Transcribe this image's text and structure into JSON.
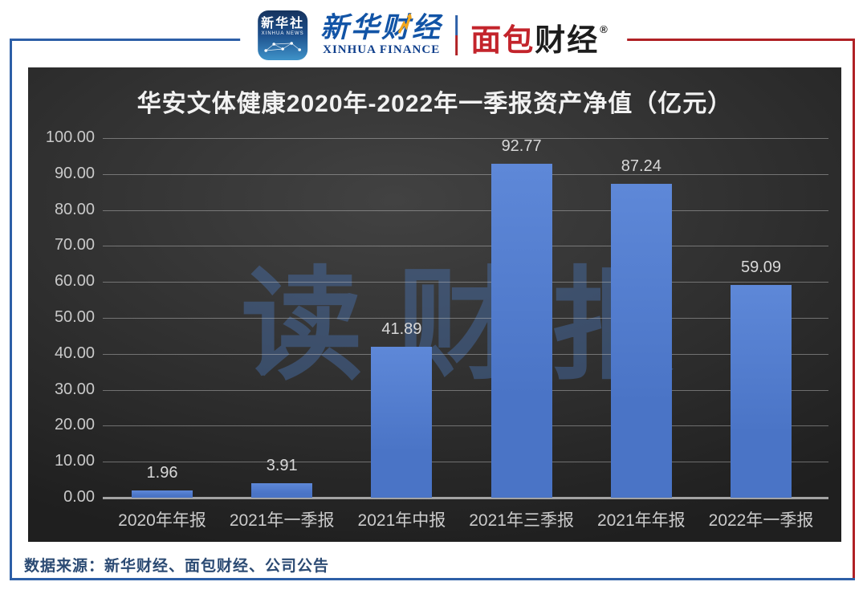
{
  "header": {
    "xinhua_news_icon": {
      "line1": "新华社",
      "line2": "XINHUA NEWS"
    },
    "xinhua_finance": {
      "cn": "新华财经",
      "en": "XINHUA FINANCE"
    },
    "mianbao": {
      "cn_red": "面包",
      "cn_black": "财经",
      "reg": "®"
    }
  },
  "chart_data": {
    "type": "bar",
    "title": "华安文体健康2020年-2022年一季报资产净值（亿元）",
    "categories": [
      "2020年年报",
      "2021年一季报",
      "2021年中报",
      "2021年三季报",
      "2021年年报",
      "2022年一季报"
    ],
    "values": [
      1.96,
      3.91,
      41.89,
      92.77,
      87.24,
      59.09
    ],
    "value_labels": [
      "1.96",
      "3.91",
      "41.89",
      "92.77",
      "87.24",
      "59.09"
    ],
    "ylim": [
      0,
      100
    ],
    "ytick_step": 10,
    "yticks": [
      "0.00",
      "10.00",
      "20.00",
      "30.00",
      "40.00",
      "50.00",
      "60.00",
      "70.00",
      "80.00",
      "90.00",
      "100.00"
    ],
    "grid": true,
    "legend": "none",
    "bar_color": "#4a74c6",
    "bar_color_top": "#5e88d8",
    "watermark": "读财报"
  },
  "footer": {
    "source": "数据来源：新华财经、面包财经、公司公告"
  },
  "colors": {
    "frame_blue": "#2d5fa7",
    "frame_red": "#b02125",
    "panel_bg": "#2f2f2f",
    "title_text": "#f2f2f2",
    "tick_text": "#c9c9c9",
    "watermark_blue": "#4a76b8",
    "xinhua_blue": "#1254a6",
    "mianbao_red": "#c3242b",
    "footer_text": "#2b4a73"
  }
}
